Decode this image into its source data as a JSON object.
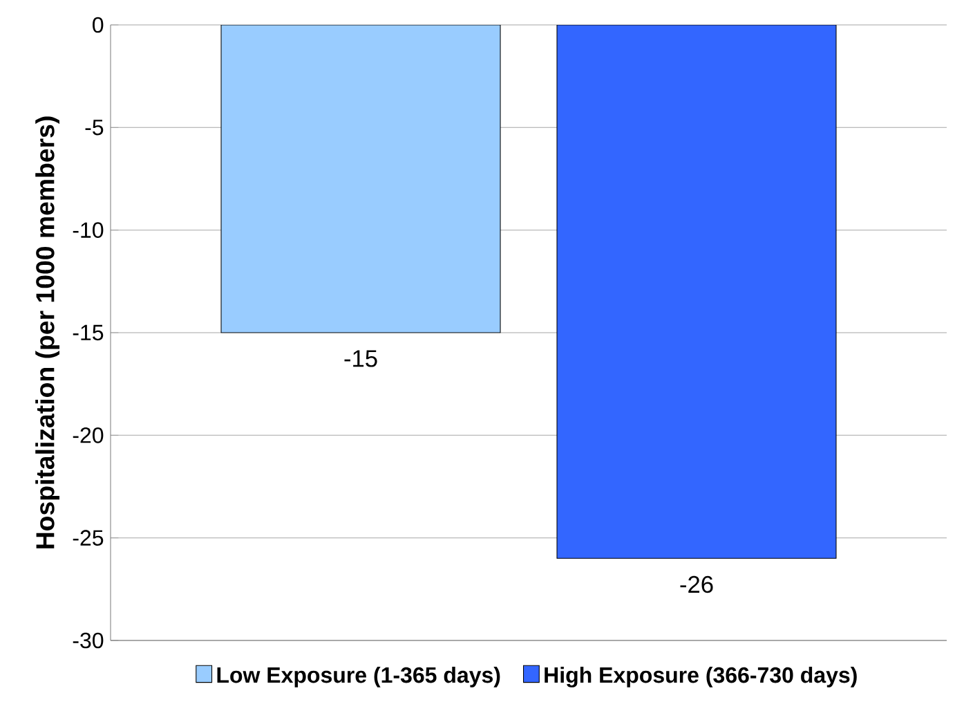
{
  "chart_data": {
    "type": "bar",
    "ylabel": "Hospitalization (per 1000 members)",
    "categories": [
      null
    ],
    "series": [
      {
        "name": "Low Exposure (1-365 days)",
        "color": "#99ccff",
        "values": [
          -15
        ]
      },
      {
        "name": "High Exposure (366-730 days)",
        "color": "#3366ff",
        "values": [
          -26
        ]
      }
    ],
    "ylim": [
      -30,
      0
    ],
    "yticks": [
      -30,
      -25,
      -20,
      -15,
      -10,
      -5,
      0
    ],
    "grid": "y",
    "legend": "bottom",
    "data_labels": true
  }
}
